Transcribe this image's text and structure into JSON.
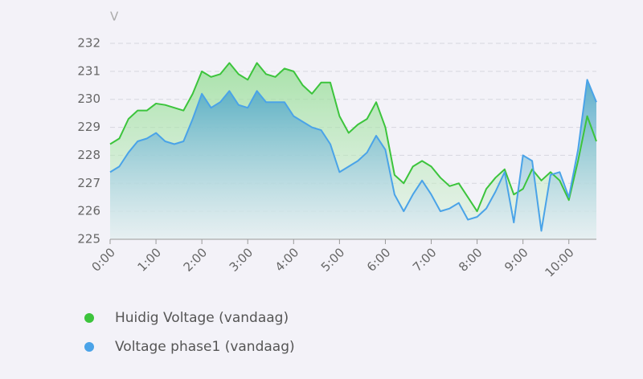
{
  "chart_data": {
    "type": "line",
    "y_axis_label": "V",
    "x": [
      0,
      0.2,
      0.4,
      0.6,
      0.8,
      1.0,
      1.2,
      1.4,
      1.6,
      1.8,
      2.0,
      2.2,
      2.4,
      2.6,
      2.8,
      3.0,
      3.2,
      3.4,
      3.6,
      3.8,
      4.0,
      4.2,
      4.4,
      4.6,
      4.8,
      5.0,
      5.2,
      5.4,
      5.6,
      5.8,
      6.0,
      6.2,
      6.4,
      6.6,
      6.8,
      7.0,
      7.2,
      7.4,
      7.6,
      7.8,
      8.0,
      8.2,
      8.4,
      8.6,
      8.8,
      9.0,
      9.2,
      9.4,
      9.6,
      9.8,
      10.0,
      10.2,
      10.4,
      10.6
    ],
    "series": [
      {
        "name": "Huidig Voltage (vandaag)",
        "color": "#3cc43c",
        "values": [
          228.4,
          228.6,
          229.3,
          229.6,
          229.6,
          229.85,
          229.8,
          229.7,
          229.6,
          230.2,
          231.0,
          230.8,
          230.9,
          231.3,
          230.9,
          230.7,
          231.3,
          230.9,
          230.8,
          231.1,
          231.0,
          230.5,
          230.2,
          230.6,
          230.6,
          229.4,
          228.8,
          229.1,
          229.3,
          229.9,
          229.0,
          227.3,
          227.0,
          227.6,
          227.8,
          227.6,
          227.2,
          226.9,
          227.0,
          226.5,
          226.0,
          226.8,
          227.2,
          227.5,
          226.6,
          226.8,
          227.5,
          227.1,
          227.4,
          227.1,
          226.4,
          227.8,
          229.4,
          228.5
        ]
      },
      {
        "name": "Voltage phase1 (vandaag)",
        "color": "#4aa3e8",
        "values": [
          227.4,
          227.6,
          228.1,
          228.5,
          228.6,
          228.8,
          228.5,
          228.4,
          228.5,
          229.3,
          230.2,
          229.7,
          229.9,
          230.3,
          229.8,
          229.7,
          230.3,
          229.9,
          229.9,
          229.9,
          229.4,
          229.2,
          229.0,
          228.9,
          228.4,
          227.4,
          227.6,
          227.8,
          228.1,
          228.7,
          228.2,
          226.6,
          226.0,
          226.6,
          227.1,
          226.6,
          226.0,
          226.1,
          226.3,
          225.7,
          225.8,
          226.1,
          226.7,
          227.4,
          225.6,
          228.0,
          227.8,
          225.3,
          227.3,
          227.4,
          226.5,
          228.2,
          230.7,
          229.9
        ]
      }
    ],
    "xlim": [
      0,
      10.6
    ],
    "xticks": [
      {
        "value": 0,
        "label": "0:00"
      },
      {
        "value": 1,
        "label": "1:00"
      },
      {
        "value": 2,
        "label": "2:00"
      },
      {
        "value": 3,
        "label": "3:00"
      },
      {
        "value": 4,
        "label": "4:00"
      },
      {
        "value": 5,
        "label": "5:00"
      },
      {
        "value": 6,
        "label": "6:00"
      },
      {
        "value": 7,
        "label": "7:00"
      },
      {
        "value": 8,
        "label": "8:00"
      },
      {
        "value": 9,
        "label": "9:00"
      },
      {
        "value": 10,
        "label": "10:00"
      }
    ],
    "ylim": [
      225,
      232
    ],
    "yticks": [
      225,
      226,
      227,
      228,
      229,
      230,
      231,
      232
    ],
    "grid": true
  }
}
